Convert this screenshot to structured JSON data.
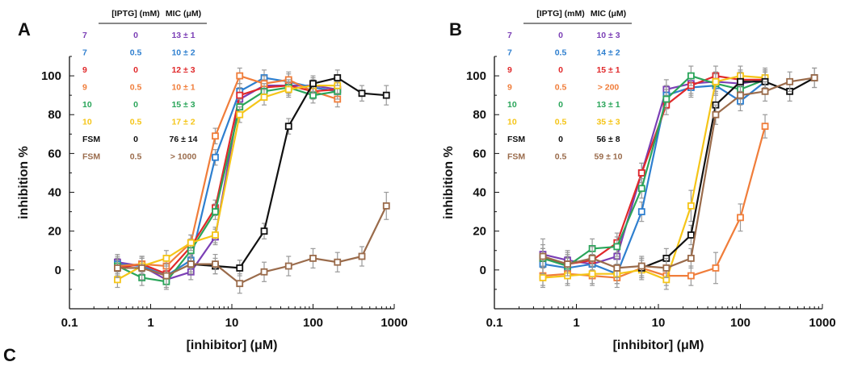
{
  "figure": {
    "panel_c": "C"
  },
  "chart_data": [
    {
      "panel": "A",
      "type": "scatter",
      "xlabel": "[inhibitor] (μM)",
      "ylabel": "inhibition %",
      "xscale": "log",
      "xlim": [
        0.1,
        1000
      ],
      "ylim": [
        -20,
        110
      ],
      "x_ticks": [
        "0.1",
        "1",
        "10",
        "100",
        "1000"
      ],
      "y_ticks": [
        "0",
        "20",
        "40",
        "60",
        "80",
        "100"
      ],
      "table_headers": [
        "[IPTG] (mM)",
        "MIC (μM)"
      ],
      "series": [
        {
          "name": "7",
          "iptg": "0",
          "mic": "13 ± 1",
          "color": "#7b3fb5",
          "x": [
            0.39,
            0.78,
            1.56,
            3.13,
            6.25,
            12.5,
            25,
            50,
            100,
            200
          ],
          "y": [
            4,
            2,
            -5,
            -1,
            17,
            88,
            95,
            95,
            95,
            93
          ],
          "err": [
            4,
            4,
            4,
            4,
            4,
            4,
            4,
            4,
            4,
            4
          ]
        },
        {
          "name": "7",
          "iptg": "0.5",
          "mic": "10 ± 2",
          "color": "#2e7fcf",
          "x": [
            0.39,
            0.78,
            1.56,
            3.13,
            6.25,
            12.5,
            25,
            50,
            100,
            200
          ],
          "y": [
            3,
            2,
            -3,
            5,
            58,
            92,
            99,
            97,
            94,
            92
          ],
          "err": [
            4,
            4,
            4,
            4,
            4,
            4,
            4,
            4,
            4,
            4
          ]
        },
        {
          "name": "9",
          "iptg": "0",
          "mic": "12 ± 3",
          "color": "#e0282a",
          "x": [
            0.39,
            0.78,
            1.56,
            3.13,
            6.25,
            12.5,
            25,
            50,
            100,
            200
          ],
          "y": [
            1,
            3,
            -2,
            12,
            32,
            90,
            94,
            95,
            92,
            93
          ],
          "err": [
            4,
            4,
            4,
            4,
            4,
            4,
            4,
            4,
            4,
            4
          ]
        },
        {
          "name": "9",
          "iptg": "0.5",
          "mic": "10 ± 1",
          "color": "#f07d3a",
          "x": [
            0.39,
            0.78,
            1.56,
            3.13,
            6.25,
            12.5,
            25,
            50,
            100,
            200
          ],
          "y": [
            2,
            3,
            2,
            14,
            69,
            100,
            96,
            98,
            92,
            88
          ],
          "err": [
            4,
            4,
            4,
            4,
            4,
            4,
            4,
            4,
            4,
            4
          ]
        },
        {
          "name": "10",
          "iptg": "0",
          "mic": "15 ± 3",
          "color": "#2aa55a",
          "x": [
            0.39,
            0.78,
            1.56,
            3.13,
            6.25,
            12.5,
            25,
            50,
            100,
            200
          ],
          "y": [
            2,
            -4,
            -6,
            10,
            30,
            84,
            92,
            94,
            90,
            92
          ],
          "err": [
            4,
            4,
            4,
            4,
            4,
            4,
            4,
            4,
            4,
            4
          ]
        },
        {
          "name": "10",
          "iptg": "0.5",
          "mic": "17 ± 2",
          "color": "#f5c518",
          "x": [
            0.39,
            0.78,
            1.56,
            3.13,
            6.25,
            12.5,
            25,
            50,
            100,
            200
          ],
          "y": [
            -5,
            2,
            6,
            14,
            18,
            80,
            89,
            93,
            95,
            95
          ],
          "err": [
            4,
            4,
            4,
            4,
            4,
            4,
            4,
            4,
            4,
            4
          ]
        },
        {
          "name": "FSM",
          "iptg": "0",
          "mic": "76 ± 14",
          "color": "#111111",
          "x": [
            3.13,
            6.25,
            12.5,
            25,
            50,
            100,
            200,
            400,
            800
          ],
          "y": [
            3,
            2,
            1,
            20,
            74,
            96,
            99,
            91,
            90
          ],
          "err": [
            4,
            4,
            4,
            4,
            4,
            4,
            4,
            4,
            5
          ]
        },
        {
          "name": "FSM",
          "iptg": "0.5",
          "mic": "> 1000",
          "color": "#9a6b4b",
          "x": [
            0.39,
            0.78,
            1.56,
            3.13,
            6.25,
            12.5,
            25,
            50,
            100,
            200,
            400,
            800
          ],
          "y": [
            1,
            1,
            -3,
            3,
            3,
            -7,
            -1,
            2,
            6,
            4,
            7,
            33
          ],
          "err": [
            5,
            6,
            6,
            5,
            5,
            5,
            5,
            5,
            5,
            5,
            5,
            7
          ]
        }
      ]
    },
    {
      "panel": "B",
      "type": "scatter",
      "xlabel": "[inhibitor] (μM)",
      "ylabel": "inhibition %",
      "xscale": "log",
      "xlim": [
        0.1,
        1000
      ],
      "ylim": [
        -20,
        110
      ],
      "x_ticks": [
        "0.1",
        "1",
        "10",
        "100",
        "1000"
      ],
      "y_ticks": [
        "0",
        "20",
        "40",
        "60",
        "80",
        "100"
      ],
      "table_headers": [
        "[IPTG] (mM)",
        "MIC (μM)"
      ],
      "series": [
        {
          "name": "7",
          "iptg": "0",
          "mic": "10 ± 3",
          "color": "#7b3fb5",
          "x": [
            0.39,
            0.78,
            1.56,
            3.13,
            6.25,
            12.5,
            25,
            50,
            100,
            200
          ],
          "y": [
            8,
            5,
            3,
            7,
            50,
            93,
            96,
            97,
            96,
            98
          ],
          "err": [
            5,
            5,
            5,
            5,
            5,
            5,
            5,
            5,
            5,
            5
          ]
        },
        {
          "name": "7",
          "iptg": "0.5",
          "mic": "14 ± 2",
          "color": "#2e7fcf",
          "x": [
            0.39,
            0.78,
            1.56,
            3.13,
            6.25,
            12.5,
            25,
            50,
            100,
            200
          ],
          "y": [
            3,
            1,
            3,
            -2,
            30,
            90,
            94,
            95,
            87,
            97
          ],
          "err": [
            5,
            5,
            5,
            5,
            5,
            5,
            5,
            5,
            5,
            5
          ]
        },
        {
          "name": "9",
          "iptg": "0",
          "mic": "15 ± 1",
          "color": "#e0282a",
          "x": [
            0.39,
            0.78,
            1.56,
            3.13,
            6.25,
            12.5,
            25,
            50,
            100,
            200
          ],
          "y": [
            6,
            3,
            5,
            14,
            50,
            85,
            95,
            100,
            98,
            98
          ],
          "err": [
            5,
            5,
            5,
            5,
            5,
            5,
            5,
            5,
            5,
            5
          ]
        },
        {
          "name": "9",
          "iptg": "0.5",
          "mic": "> 200",
          "color": "#f07d3a",
          "x": [
            0.39,
            0.78,
            1.56,
            3.13,
            6.25,
            12.5,
            25,
            50,
            100,
            200
          ],
          "y": [
            -3,
            -2,
            -3,
            -4,
            1,
            -3,
            -3,
            1,
            27,
            74
          ],
          "err": [
            5,
            5,
            5,
            5,
            5,
            5,
            5,
            8,
            7,
            6
          ]
        },
        {
          "name": "10",
          "iptg": "0",
          "mic": "13 ± 1",
          "color": "#2aa55a",
          "x": [
            0.39,
            0.78,
            1.56,
            3.13,
            6.25,
            12.5,
            25,
            50,
            100,
            200
          ],
          "y": [
            6,
            2,
            11,
            12,
            42,
            88,
            100,
            96,
            93,
            98
          ],
          "err": [
            5,
            5,
            5,
            5,
            5,
            5,
            5,
            5,
            5,
            5
          ]
        },
        {
          "name": "10",
          "iptg": "0.5",
          "mic": "35 ± 3",
          "color": "#f5c518",
          "x": [
            0.39,
            0.78,
            1.56,
            3.13,
            6.25,
            12.5,
            25,
            50,
            100,
            200
          ],
          "y": [
            -4,
            -3,
            -2,
            -2,
            0,
            -5,
            33,
            97,
            100,
            99
          ],
          "err": [
            5,
            5,
            5,
            5,
            5,
            5,
            8,
            5,
            5,
            5
          ]
        },
        {
          "name": "FSM",
          "iptg": "0",
          "mic": "56 ± 8",
          "color": "#111111",
          "x": [
            6.25,
            12.5,
            25,
            50,
            100,
            200,
            400,
            800
          ],
          "y": [
            1,
            6,
            18,
            85,
            97,
            97,
            92,
            99
          ],
          "err": [
            5,
            5,
            5,
            5,
            5,
            5,
            5,
            5
          ]
        },
        {
          "name": "FSM",
          "iptg": "0.5",
          "mic": "59 ± 10",
          "color": "#9a6b4b",
          "x": [
            0.39,
            0.78,
            1.56,
            3.13,
            6.25,
            12.5,
            25,
            50,
            100,
            200,
            400,
            800
          ],
          "y": [
            7,
            3,
            6,
            1,
            2,
            1,
            6,
            80,
            90,
            92,
            97,
            99
          ],
          "err": [
            9,
            6,
            6,
            5,
            5,
            5,
            5,
            5,
            5,
            5,
            5,
            5
          ]
        }
      ]
    }
  ]
}
